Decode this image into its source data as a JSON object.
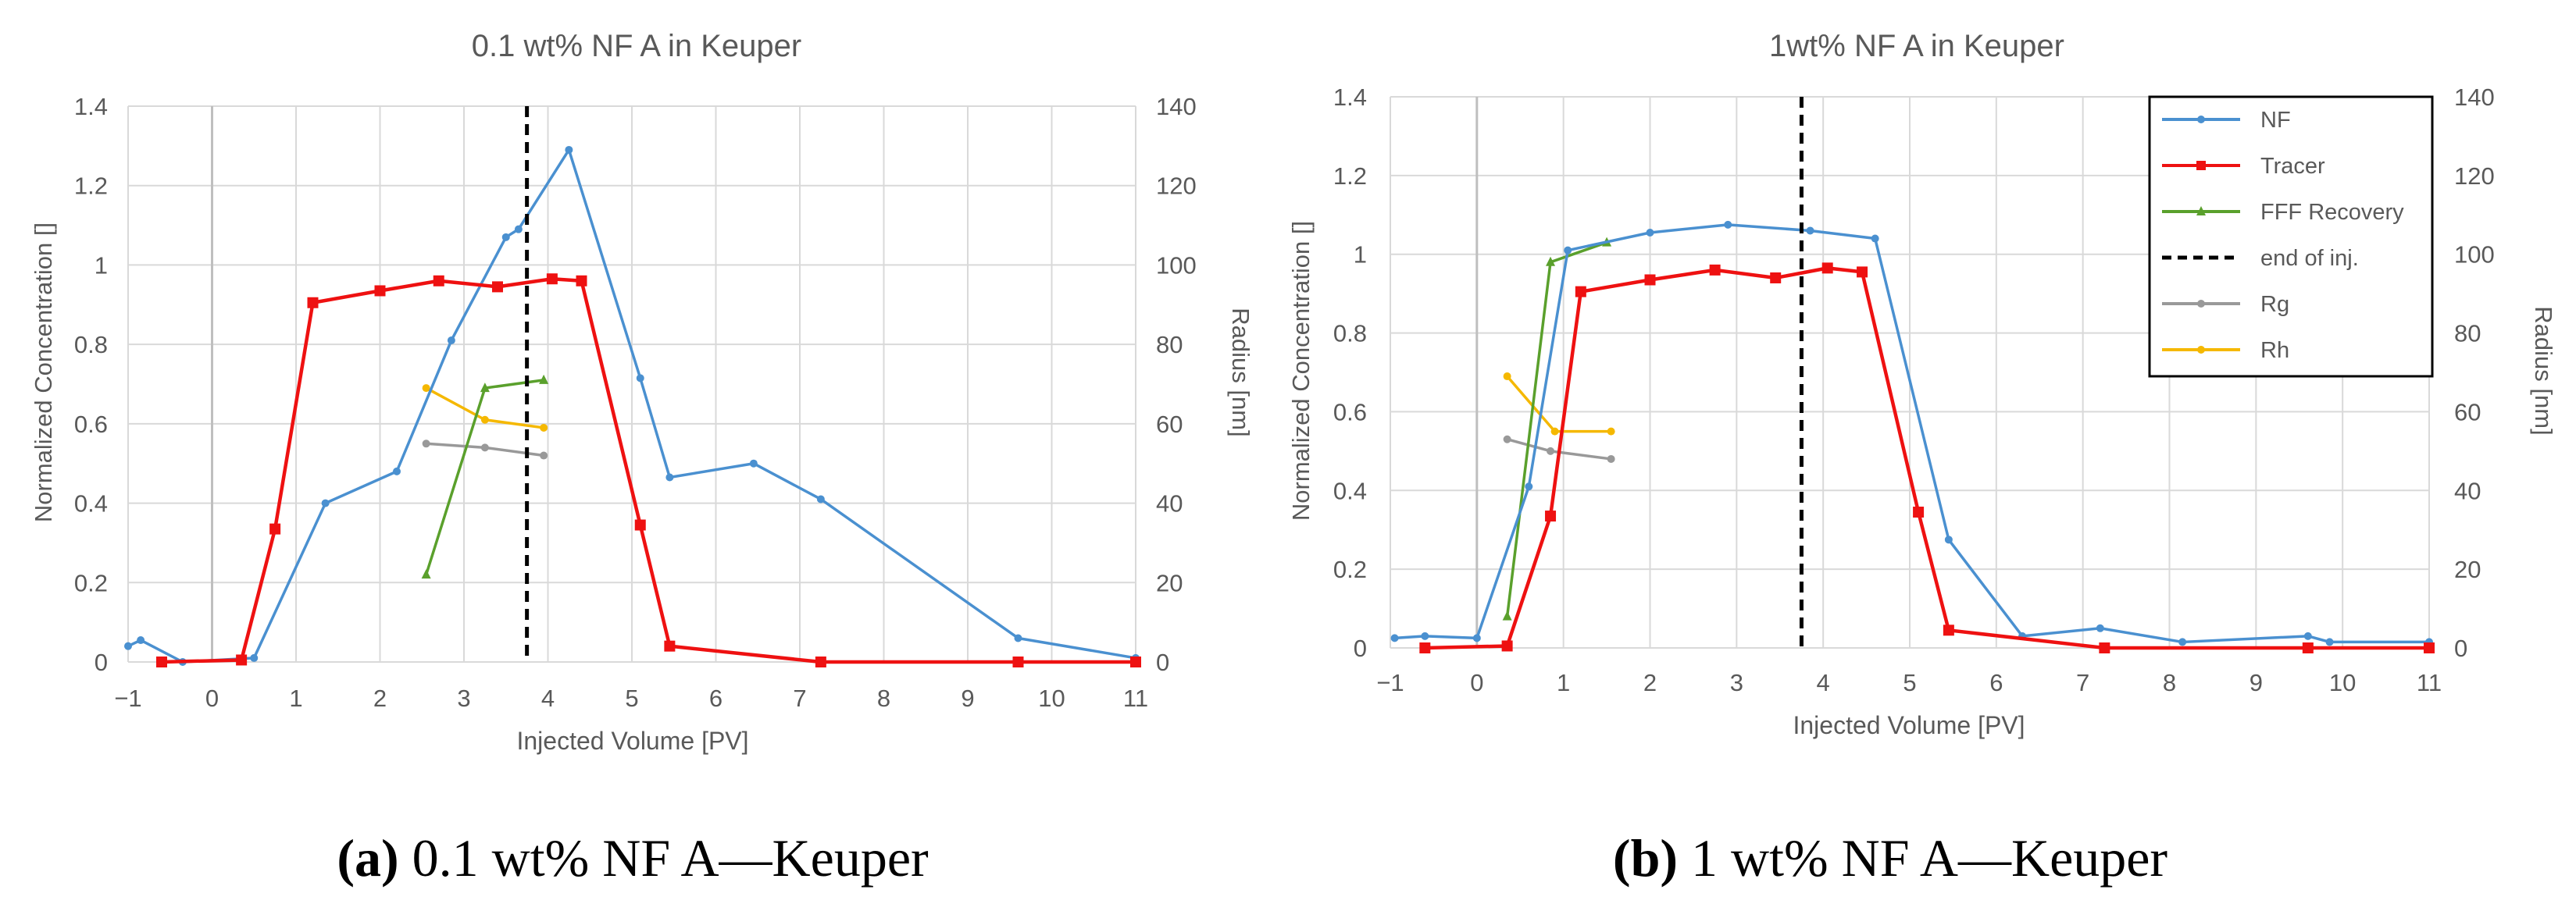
{
  "colors": {
    "nf": "#4a90d0",
    "tracer": "#ee1111",
    "fff": "#5aa02c",
    "rg": "#999999",
    "rh": "#f5b800",
    "grid": "#d9d9d9",
    "axis_text": "#595959",
    "inj": "#000000"
  },
  "legend": [
    {
      "key": "nf",
      "label": "NF",
      "marker": "circle",
      "dash": false
    },
    {
      "key": "tracer",
      "label": "Tracer",
      "marker": "square",
      "dash": false
    },
    {
      "key": "fff",
      "label": "FFF Recovery",
      "marker": "triangle",
      "dash": false
    },
    {
      "key": "inj",
      "label": "end of inj.",
      "marker": "none",
      "dash": true
    },
    {
      "key": "rg",
      "label": "Rg",
      "marker": "circle",
      "dash": false
    },
    {
      "key": "rh",
      "label": "Rh",
      "marker": "circle",
      "dash": false
    }
  ],
  "chart_data": [
    {
      "type": "line",
      "title": "0.1 wt% NF A in Keuper",
      "caption_bold": "(a)",
      "caption_rest": " 0.1 wt% NF A—Keuper",
      "xlabel": "Injected Volume [PV]",
      "ylabel": "Normalized Concentration []",
      "y2label": "Radius [nm]",
      "xlim": [
        -1,
        11
      ],
      "ylim": [
        0,
        1.4
      ],
      "y2lim": [
        0,
        140
      ],
      "xticks": [
        -1,
        0,
        1,
        2,
        3,
        4,
        5,
        6,
        7,
        8,
        9,
        10,
        11
      ],
      "yticks": [
        "0",
        "0.2",
        "0.4",
        "0.6",
        "0.8",
        "1",
        "1.2",
        "1.4"
      ],
      "y2ticks": [
        "0",
        "20",
        "40",
        "60",
        "80",
        "100",
        "120",
        "140"
      ],
      "end_of_injection": 3.75,
      "legend_shown": false,
      "series": [
        {
          "name": "NF",
          "key": "nf",
          "axis": "y",
          "marker": "circle",
          "x": [
            -1.0,
            -0.85,
            -0.35,
            0.5,
            1.35,
            2.2,
            2.85,
            3.5,
            3.65,
            4.25,
            5.1,
            5.45,
            6.45,
            7.25,
            9.6,
            11.0
          ],
          "y": [
            0.04,
            0.055,
            0.0,
            0.01,
            0.4,
            0.48,
            0.81,
            1.07,
            1.09,
            1.29,
            0.715,
            0.465,
            0.5,
            0.41,
            0.06,
            0.01
          ]
        },
        {
          "name": "Tracer",
          "key": "tracer",
          "axis": "y",
          "marker": "square",
          "x": [
            -0.6,
            0.35,
            0.75,
            1.2,
            2.0,
            2.7,
            3.4,
            4.05,
            4.4,
            5.1,
            5.45,
            7.25,
            9.6,
            11.0
          ],
          "y": [
            0.0,
            0.005,
            0.335,
            0.905,
            0.935,
            0.96,
            0.945,
            0.965,
            0.96,
            0.345,
            0.04,
            0.0,
            0.0,
            0.0
          ]
        },
        {
          "name": "FFF Recovery",
          "key": "fff",
          "axis": "y2",
          "marker": "triangle",
          "x": [
            2.55,
            3.25,
            3.95
          ],
          "y": [
            22,
            69,
            71
          ]
        },
        {
          "name": "Rg",
          "key": "rg",
          "axis": "y2",
          "marker": "circle",
          "x": [
            2.55,
            3.25,
            3.95
          ],
          "y": [
            55,
            54,
            52
          ]
        },
        {
          "name": "Rh",
          "key": "rh",
          "axis": "y2",
          "marker": "circle",
          "x": [
            2.55,
            3.25,
            3.95
          ],
          "y": [
            69,
            61,
            59
          ]
        }
      ]
    },
    {
      "type": "line",
      "title": "1wt% NF A in Keuper",
      "caption_bold": "(b)",
      "caption_rest": " 1 wt% NF A—Keuper",
      "xlabel": "Injected Volume [PV]",
      "ylabel": "Normalized Concentration []",
      "y2label": "Radius [nm]",
      "xlim": [
        -1,
        11
      ],
      "ylim": [
        0,
        1.4
      ],
      "y2lim": [
        0,
        140
      ],
      "xticks": [
        -1,
        0,
        1,
        2,
        3,
        4,
        5,
        6,
        7,
        8,
        9,
        10,
        11
      ],
      "yticks": [
        "0",
        "0.2",
        "0.4",
        "0.6",
        "0.8",
        "1",
        "1.2",
        "1.4"
      ],
      "y2ticks": [
        "0",
        "20",
        "40",
        "60",
        "80",
        "100",
        "120",
        "140"
      ],
      "end_of_injection": 3.75,
      "legend_shown": true,
      "legend_position": "top-right",
      "series": [
        {
          "name": "NF",
          "key": "nf",
          "axis": "y",
          "marker": "circle",
          "x": [
            -0.95,
            -0.6,
            0.0,
            0.6,
            1.05,
            2.0,
            2.9,
            3.85,
            4.6,
            5.45,
            6.3,
            7.2,
            8.15,
            9.6,
            9.85,
            11.0
          ],
          "y": [
            0.025,
            0.03,
            0.025,
            0.41,
            1.01,
            1.055,
            1.075,
            1.06,
            1.04,
            0.275,
            0.03,
            0.05,
            0.015,
            0.03,
            0.015,
            0.015
          ]
        },
        {
          "name": "Tracer",
          "key": "tracer",
          "axis": "y",
          "marker": "square",
          "x": [
            -0.6,
            0.35,
            0.85,
            1.2,
            2.0,
            2.75,
            3.45,
            4.05,
            4.45,
            5.1,
            5.45,
            7.25,
            9.6,
            11.0
          ],
          "y": [
            0.0,
            0.005,
            0.335,
            0.905,
            0.935,
            0.96,
            0.94,
            0.965,
            0.955,
            0.345,
            0.045,
            0.0,
            0.0,
            0.0
          ]
        },
        {
          "name": "FFF Recovery",
          "key": "fff",
          "axis": "y2",
          "marker": "triangle",
          "x": [
            0.35,
            0.85,
            1.5
          ],
          "y": [
            8,
            98,
            103
          ]
        },
        {
          "name": "Rg",
          "key": "rg",
          "axis": "y2",
          "marker": "circle",
          "x": [
            0.35,
            0.85,
            1.55
          ],
          "y": [
            53,
            50,
            48
          ]
        },
        {
          "name": "Rh",
          "key": "rh",
          "axis": "y2",
          "marker": "circle",
          "x": [
            0.35,
            0.9,
            1.55
          ],
          "y": [
            69,
            55,
            55
          ]
        }
      ]
    }
  ]
}
